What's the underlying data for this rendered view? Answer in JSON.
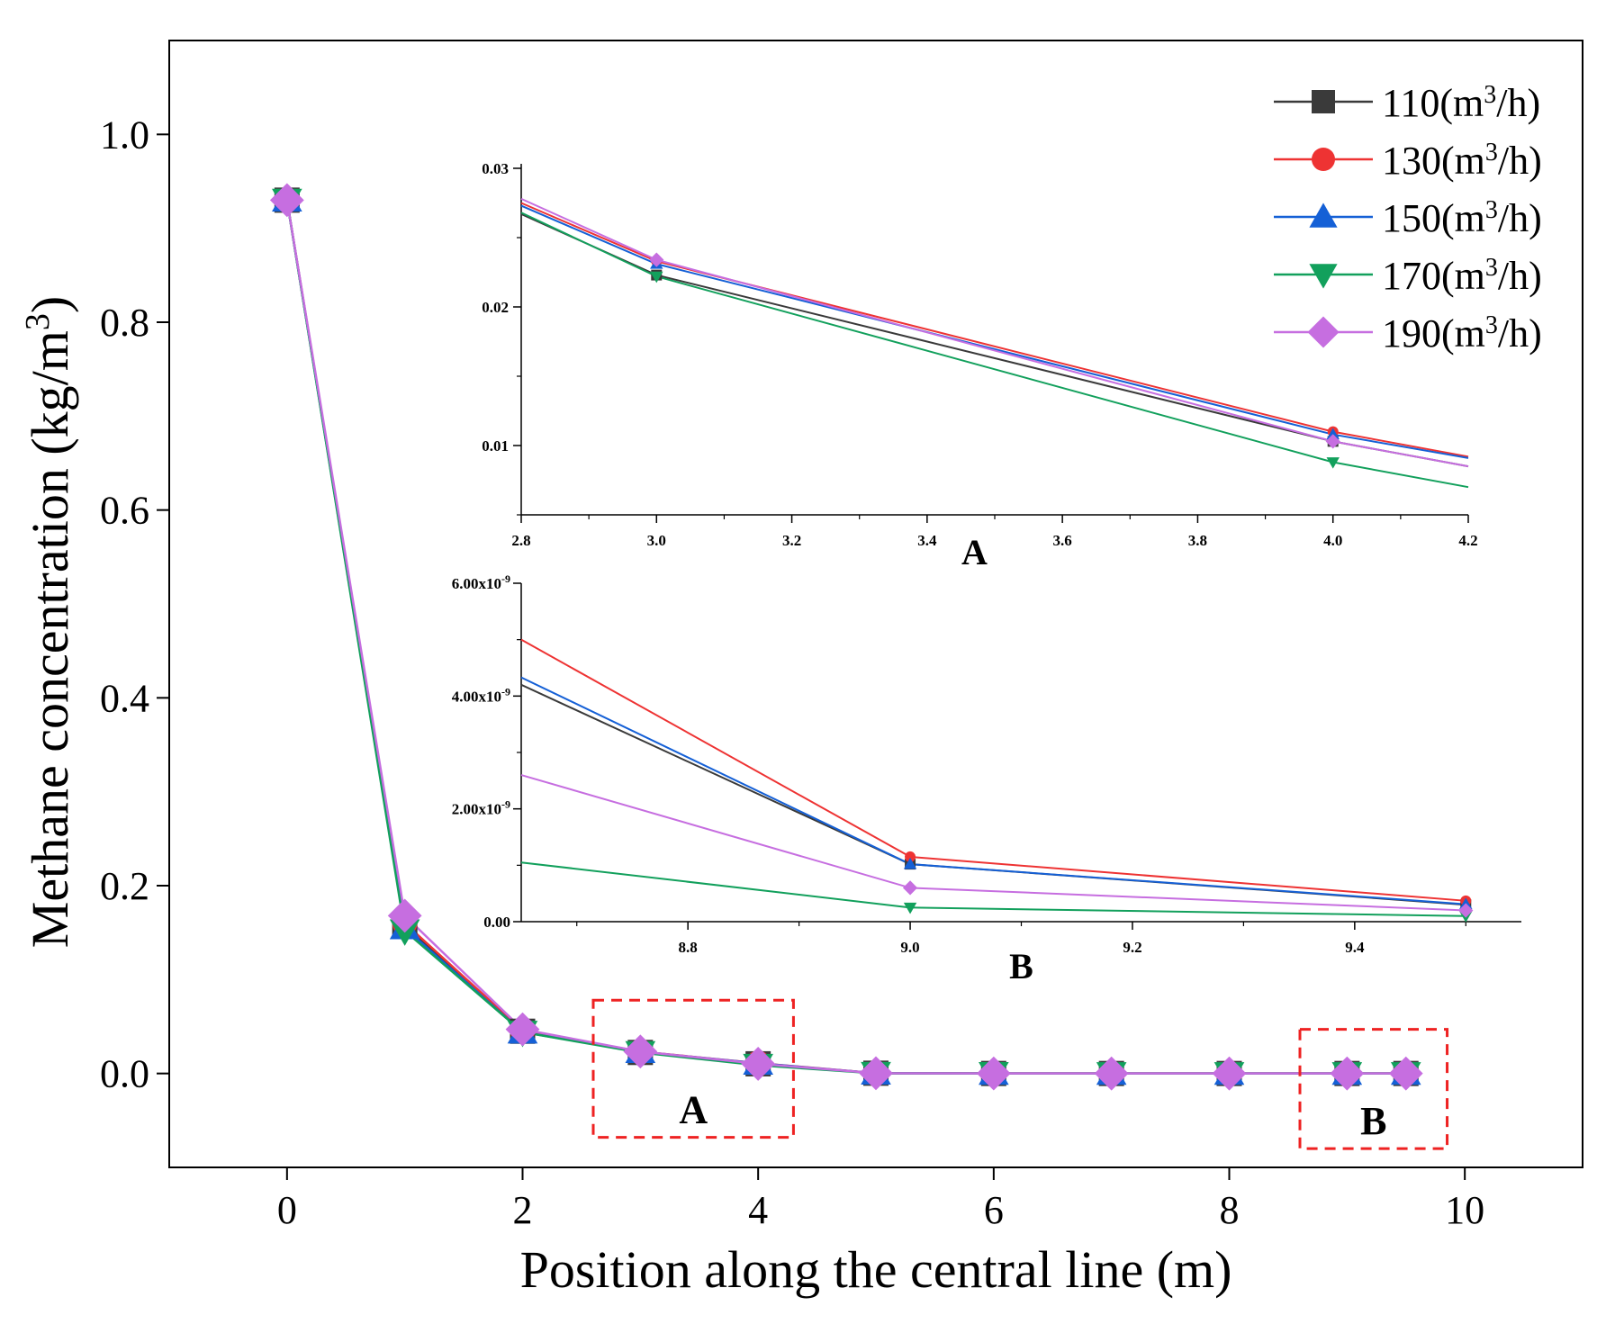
{
  "chart_data": {
    "main": {
      "type": "line",
      "xlabel": "Position along the central line (m)",
      "ylabel_text": "Methane concentration (kg/m",
      "ylabel_sup": "3",
      "ylabel_close": ")",
      "xlim": [
        -1,
        11
      ],
      "ylim": [
        -0.1,
        1.1
      ],
      "x_ticks": [
        0,
        2,
        4,
        6,
        8,
        10
      ],
      "x_tick_labels": [
        "0",
        "2",
        "4",
        "6",
        "8",
        "10"
      ],
      "y_ticks": [
        0.0,
        0.2,
        0.4,
        0.6,
        0.8,
        1.0
      ],
      "y_tick_labels": [
        "0.0",
        "0.2",
        "0.4",
        "0.6",
        "0.8",
        "1.0"
      ],
      "x": [
        0,
        1,
        2,
        3,
        4,
        5,
        6,
        7,
        8,
        9,
        9.5
      ],
      "series": [
        {
          "name": "110",
          "color": "#3a3a3a",
          "marker": "square",
          "values": [
            0.93,
            0.158,
            0.045,
            0.0224,
            0.0103,
            0.0003,
            2e-05,
            2e-06,
            1e-07,
            1e-09,
            3e-10
          ]
        },
        {
          "name": "130",
          "color": "#ee3333",
          "marker": "circle",
          "values": [
            0.93,
            0.16,
            0.046,
            0.0233,
            0.011,
            0.0003,
            2e-05,
            2e-06,
            1e-07,
            1.15e-09,
            3.7e-10
          ]
        },
        {
          "name": "150",
          "color": "#1560d6",
          "marker": "triangle-up",
          "values": [
            0.93,
            0.155,
            0.044,
            0.0232,
            0.0108,
            0.0003,
            2e-05,
            2e-06,
            1e-07,
            1e-09,
            3e-10
          ]
        },
        {
          "name": "170",
          "color": "#12a05c",
          "marker": "triangle-down",
          "values": [
            0.93,
            0.152,
            0.044,
            0.0223,
            0.0088,
            0.0002,
            1e-05,
            1e-06,
            1e-07,
            2.5e-10,
            1e-10
          ]
        },
        {
          "name": "190",
          "color": "#c66ee0",
          "marker": "diamond",
          "values": [
            0.93,
            0.168,
            0.047,
            0.0234,
            0.0103,
            0.0003,
            2e-05,
            2e-06,
            1e-07,
            6e-10,
            2e-10
          ]
        }
      ],
      "annotations": [
        {
          "label": "A",
          "x_range": [
            2.6,
            4.3
          ],
          "y_range": [
            -0.068,
            0.078
          ]
        },
        {
          "label": "B",
          "x_range": [
            8.6,
            9.85
          ],
          "y_range": [
            -0.08,
            0.047
          ]
        }
      ]
    },
    "inset_a": {
      "type": "line",
      "label": "A",
      "xlim": [
        2.8,
        4.2
      ],
      "ylim": [
        0.005,
        0.03
      ],
      "x_ticks": [
        2.8,
        3.0,
        3.2,
        3.4,
        3.6,
        3.8,
        4.0,
        4.2
      ],
      "x_tick_labels": [
        "2.8",
        "3.0",
        "3.2",
        "3.4",
        "3.6",
        "3.8",
        "4.0",
        "4.2"
      ],
      "y_ticks": [
        0.01,
        0.02,
        0.03
      ],
      "y_tick_labels": [
        "0.01",
        "0.02",
        "0.03"
      ],
      "series": [
        {
          "name": "110",
          "x": [
            2.8,
            3.0,
            4.0,
            4.2
          ],
          "values": [
            0.0267,
            0.0223,
            0.0103,
            0.0085
          ],
          "markers_at": [
            3.0,
            4.0
          ]
        },
        {
          "name": "130",
          "x": [
            2.8,
            3.0,
            4.0,
            4.2
          ],
          "values": [
            0.0275,
            0.0233,
            0.011,
            0.0092
          ],
          "markers_at": [
            3.0,
            4.0
          ]
        },
        {
          "name": "150",
          "x": [
            2.8,
            3.0,
            4.0,
            4.2
          ],
          "values": [
            0.0273,
            0.0231,
            0.0108,
            0.0091
          ],
          "markers_at": [
            3.0,
            4.0
          ]
        },
        {
          "name": "170",
          "x": [
            2.8,
            3.0,
            4.0,
            4.2
          ],
          "values": [
            0.0268,
            0.0222,
            0.0088,
            0.007
          ],
          "markers_at": [
            3.0,
            4.0
          ]
        },
        {
          "name": "190",
          "x": [
            2.8,
            3.0,
            4.0,
            4.2
          ],
          "values": [
            0.0278,
            0.0234,
            0.0103,
            0.0085
          ],
          "markers_at": [
            3.0,
            4.0
          ]
        }
      ]
    },
    "inset_b": {
      "type": "line",
      "label": "B",
      "xlim": [
        8.65,
        9.55
      ],
      "ylim": [
        0,
        6e-09
      ],
      "x_ticks": [
        8.8,
        9.0,
        9.2,
        9.4
      ],
      "x_tick_labels": [
        "8.8",
        "9.0",
        "9.2",
        "9.4"
      ],
      "y_ticks": [
        0,
        2e-09,
        4e-09,
        6e-09
      ],
      "y_tick_labels": [
        "0.00",
        "2.00x10",
        "4.00x10",
        "6.00x10"
      ],
      "y_tick_exp": [
        "",
        "-9",
        "-9",
        "-9"
      ],
      "series": [
        {
          "name": "110",
          "x": [
            8.65,
            9.0,
            9.5
          ],
          "values": [
            4.2e-09,
            1.02e-09,
            3e-10
          ],
          "markers_at": [
            9.0,
            9.5
          ]
        },
        {
          "name": "130",
          "x": [
            8.65,
            9.0,
            9.5
          ],
          "values": [
            5e-09,
            1.15e-09,
            3.7e-10
          ],
          "markers_at": [
            9.0,
            9.5
          ]
        },
        {
          "name": "150",
          "x": [
            8.65,
            9.0,
            9.5
          ],
          "values": [
            4.33e-09,
            1.02e-09,
            3.1e-10
          ],
          "markers_at": [
            9.0,
            9.5
          ]
        },
        {
          "name": "170",
          "x": [
            8.65,
            9.0,
            9.5
          ],
          "values": [
            1.05e-09,
            2.5e-10,
            1e-10
          ],
          "markers_at": [
            9.0,
            9.5
          ]
        },
        {
          "name": "190",
          "x": [
            8.65,
            9.0,
            9.5
          ],
          "values": [
            2.6e-09,
            6e-10,
            2e-10
          ],
          "markers_at": [
            9.0,
            9.5
          ]
        }
      ]
    },
    "legend": {
      "placement": "top-right",
      "unit_prefix": "(m",
      "unit_sup": "3",
      "unit_suffix": "/h)"
    }
  }
}
